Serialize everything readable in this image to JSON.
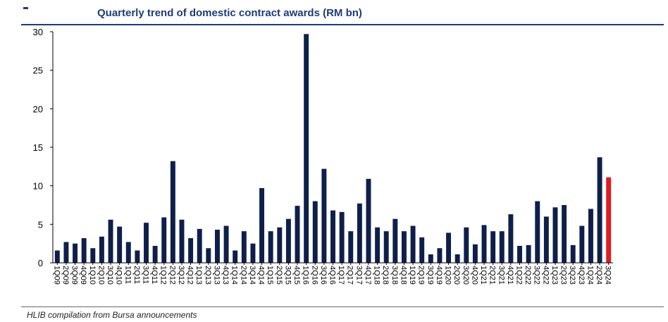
{
  "header": {
    "title": "Quarterly trend of domestic contract awards (RM bn)"
  },
  "footer": {
    "source": "HLIB compilation from Bursa announcements"
  },
  "colors": {
    "bar": "#0f1f4b",
    "highlight_bar": "#e01b24",
    "accent": "#1f3a7a"
  },
  "chart_data": {
    "type": "bar",
    "title": "Quarterly trend of domestic contract awards (RM bn)",
    "xlabel": "",
    "ylabel": "",
    "ylim": [
      0,
      30
    ],
    "yticks": [
      0,
      5,
      10,
      15,
      20,
      25,
      30
    ],
    "grid": false,
    "legend": "none",
    "highlight_last": true,
    "categories": [
      "1Q09",
      "2Q09",
      "3Q09",
      "4Q09",
      "1Q10",
      "2Q10",
      "3Q10",
      "4Q10",
      "1Q11",
      "2Q11",
      "3Q11",
      "4Q11",
      "1Q12",
      "2Q12",
      "3Q12",
      "4Q12",
      "1Q13",
      "2Q13",
      "3Q13",
      "4Q13",
      "1Q14",
      "2Q14",
      "3Q14",
      "4Q14",
      "1Q15",
      "2Q15",
      "3Q15",
      "4Q15",
      "1Q16",
      "2Q16",
      "3Q16",
      "4Q16",
      "1Q17",
      "2Q17",
      "3Q17",
      "4Q17",
      "1Q18",
      "2Q18",
      "3Q18",
      "4Q18",
      "1Q19",
      "2Q19",
      "3Q19",
      "4Q19",
      "1Q20",
      "2Q20",
      "3Q20",
      "4Q20",
      "1Q21",
      "2Q21",
      "3Q21",
      "4Q21",
      "1Q22",
      "2Q22",
      "3Q22",
      "4Q22",
      "1Q23",
      "2Q23",
      "3Q23",
      "4Q23",
      "1Q24",
      "2Q24",
      "3Q24"
    ],
    "values": [
      1.6,
      2.7,
      2.5,
      3.2,
      1.9,
      3.4,
      5.6,
      4.7,
      2.7,
      1.6,
      5.2,
      2.2,
      5.9,
      13.2,
      5.6,
      3.2,
      4.4,
      1.9,
      4.3,
      4.8,
      1.6,
      4.1,
      2.5,
      9.7,
      4.1,
      4.6,
      5.7,
      7.4,
      29.7,
      8.0,
      12.2,
      6.8,
      6.6,
      4.1,
      7.7,
      10.9,
      4.6,
      4.1,
      5.7,
      4.1,
      4.8,
      3.3,
      1.1,
      1.9,
      3.9,
      1.1,
      4.6,
      2.4,
      4.9,
      4.1,
      4.1,
      6.3,
      2.2,
      2.3,
      8.0,
      6.0,
      7.2,
      7.5,
      2.3,
      4.8,
      7.0,
      13.7,
      11.1
    ]
  }
}
